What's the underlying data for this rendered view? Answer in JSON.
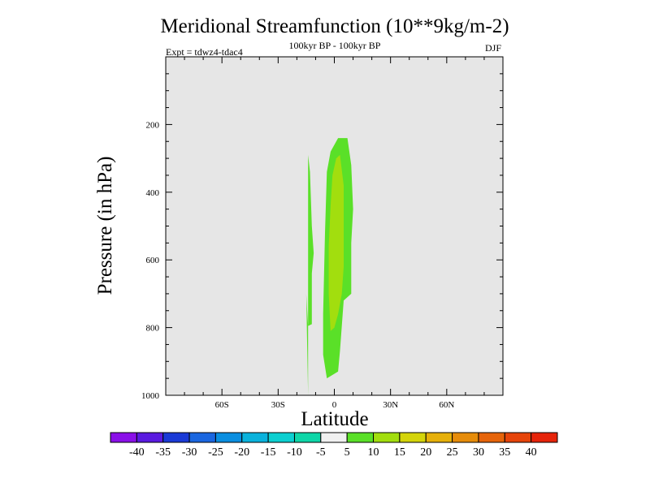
{
  "chart_data": {
    "type": "contour",
    "title": "Meridional Streamfunction (10**9kg/m-2)",
    "subtitle_left": "Expt = tdwz4-tdac4",
    "subtitle_center": "100kyr BP - 100kyr BP",
    "subtitle_right": "DJF",
    "xlabel": "Latitude",
    "ylabel": "Pressure (in hPa)",
    "xlim": [
      -90,
      90
    ],
    "ylim": [
      1000,
      0
    ],
    "x_ticks": [
      {
        "value": -60,
        "label": "60S"
      },
      {
        "value": -30,
        "label": "30S"
      },
      {
        "value": 0,
        "label": "0"
      },
      {
        "value": 30,
        "label": "30N"
      },
      {
        "value": 60,
        "label": "60N"
      }
    ],
    "y_ticks": [
      {
        "value": 200,
        "label": "200"
      },
      {
        "value": 400,
        "label": "400"
      },
      {
        "value": 600,
        "label": "600"
      },
      {
        "value": 800,
        "label": "800"
      },
      {
        "value": 1000,
        "label": "1000"
      }
    ],
    "background_color": "#e6e6e6",
    "filled_regions": [
      {
        "level": "5 to 10",
        "color": "#5ae028",
        "points": [
          [
            -14,
            1000
          ],
          [
            -14,
            290
          ],
          [
            -13,
            340
          ],
          [
            -12,
            500
          ],
          [
            -11,
            580
          ],
          [
            -12,
            640
          ],
          [
            -12,
            790
          ],
          [
            -14,
            795
          ],
          [
            -15,
            700
          ]
        ]
      },
      {
        "level": "5 to 10",
        "color": "#5ae028",
        "points": [
          [
            -4,
            950
          ],
          [
            -6,
            880
          ],
          [
            -6,
            760
          ],
          [
            -5,
            520
          ],
          [
            -4,
            340
          ],
          [
            -2,
            280
          ],
          [
            2,
            240
          ],
          [
            7,
            240
          ],
          [
            9,
            320
          ],
          [
            10,
            450
          ],
          [
            9,
            550
          ],
          [
            9,
            700
          ],
          [
            5,
            720
          ],
          [
            3,
            870
          ],
          [
            2,
            930
          ]
        ]
      },
      {
        "level": "10 to 15",
        "color": "#a2de0e",
        "points": [
          [
            -2,
            810
          ],
          [
            -3,
            700
          ],
          [
            -3,
            560
          ],
          [
            -2,
            440
          ],
          [
            -1,
            350
          ],
          [
            1,
            300
          ],
          [
            3,
            290
          ],
          [
            5,
            380
          ],
          [
            5,
            500
          ],
          [
            5,
            620
          ],
          [
            4,
            700
          ],
          [
            2,
            760
          ],
          [
            0,
            800
          ]
        ]
      }
    ],
    "colorbar": {
      "labels": [
        "-40",
        "-35",
        "-30",
        "-25",
        "-20",
        "-15",
        "-10",
        "-5",
        "5",
        "10",
        "15",
        "20",
        "25",
        "30",
        "35",
        "40"
      ],
      "colors": [
        "#8a10e8",
        "#5a1ae0",
        "#1a3ad6",
        "#1a66e0",
        "#0a8ee0",
        "#0ab2dc",
        "#0ccfd0",
        "#0ed6a8",
        "#f0f0f0",
        "#5ae028",
        "#a2de0e",
        "#d4d40a",
        "#e6b00a",
        "#e68c0a",
        "#e6640a",
        "#e6440a",
        "#e6240a"
      ]
    }
  }
}
